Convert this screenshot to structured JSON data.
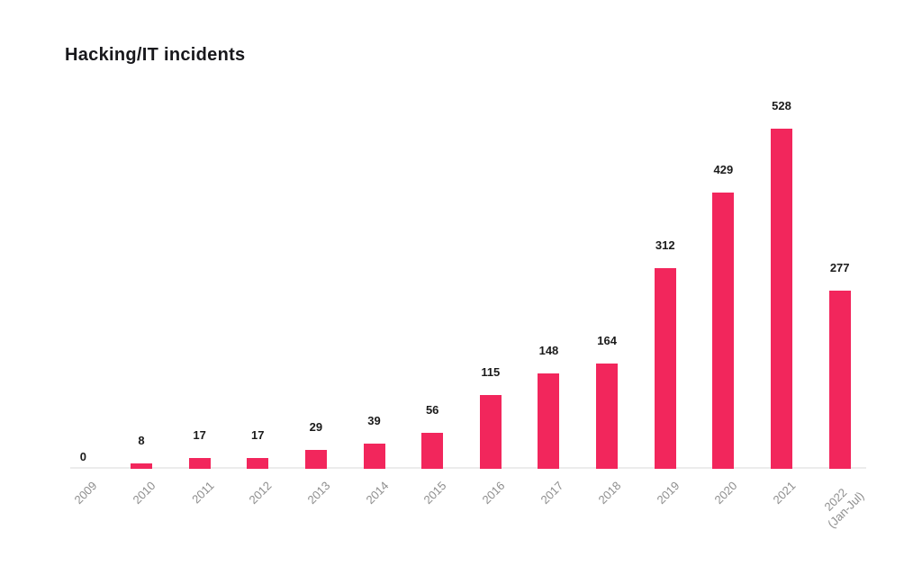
{
  "title": "Hacking/IT incidents",
  "chart_data": {
    "type": "bar",
    "title": "Hacking/IT incidents",
    "categories": [
      "2009",
      "2010",
      "2011",
      "2012",
      "2013",
      "2014",
      "2015",
      "2016",
      "2017",
      "2018",
      "2019",
      "2020",
      "2021",
      "2022\n(Jan-Jul)"
    ],
    "values": [
      0,
      8,
      17,
      17,
      29,
      39,
      56,
      115,
      148,
      164,
      312,
      429,
      528,
      277
    ],
    "xlabel": "",
    "ylabel": "",
    "ylim": [
      0,
      560
    ],
    "grid": false,
    "legend": false,
    "value_labels": true,
    "bar_color": "#F2265C",
    "value_label_color": "#1B1B1B",
    "tick_label_color": "#8D8D8D",
    "baseline_color": "#ECECEC",
    "background_color": "#FFFFFF"
  }
}
